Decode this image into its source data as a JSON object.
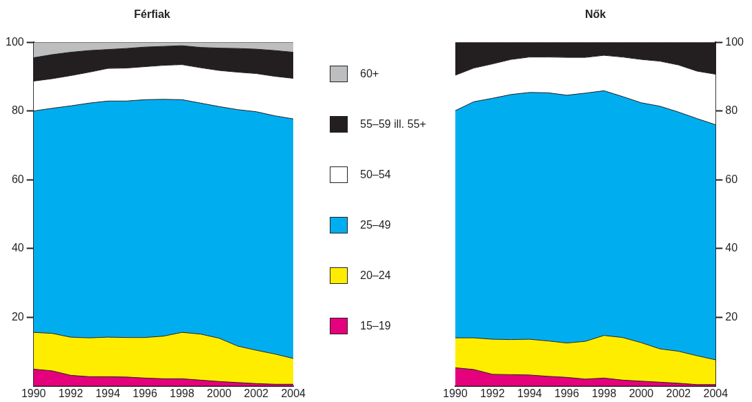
{
  "chart_data": [
    {
      "type": "area",
      "title": "Férfiak",
      "stacked": true,
      "legend": "right",
      "grid": false,
      "x": [
        1990,
        1991,
        1992,
        1993,
        1994,
        1995,
        1996,
        1997,
        1998,
        1999,
        2000,
        2001,
        2002,
        2003,
        2004
      ],
      "xlim": [
        1990,
        2004
      ],
      "xticks": [
        1990,
        1992,
        1994,
        1996,
        1998,
        2000,
        2002,
        2004
      ],
      "ylim": [
        0,
        100
      ],
      "yticks": [
        20,
        40,
        60,
        80,
        100
      ],
      "series": [
        {
          "name": "15–19",
          "color": "#e5007d",
          "values": [
            4.9,
            4.4,
            3.1,
            2.7,
            2.7,
            2.6,
            2.3,
            2.1,
            2.1,
            1.7,
            1.3,
            1.0,
            0.7,
            0.5,
            0.5
          ]
        },
        {
          "name": "20–24",
          "color": "#ffed00",
          "values": [
            10.7,
            10.9,
            11.1,
            11.3,
            11.5,
            11.5,
            11.8,
            12.4,
            13.5,
            13.4,
            12.6,
            10.6,
            9.7,
            8.8,
            7.5
          ]
        },
        {
          "name": "25–49",
          "color": "#00aeef",
          "values": [
            64.4,
            65.5,
            67.3,
            68.3,
            68.7,
            68.8,
            69.2,
            68.9,
            67.7,
            67.2,
            67.4,
            68.8,
            69.4,
            69.3,
            69.7
          ]
        },
        {
          "name": "50–54",
          "color": "#ffffff",
          "values": [
            8.7,
            8.6,
            8.8,
            9.0,
            9.5,
            9.6,
            9.6,
            9.9,
            10.2,
            10.3,
            10.5,
            10.9,
            11.1,
            11.5,
            11.8
          ]
        },
        {
          "name": "55–59 ill. 55+",
          "color": "#231f20",
          "values": [
            6.8,
            7.0,
            6.8,
            6.3,
            5.5,
            5.7,
            5.7,
            5.5,
            5.5,
            5.9,
            6.5,
            6.9,
            7.1,
            7.5,
            7.6
          ]
        },
        {
          "name": "60+",
          "color": "#bcbec0",
          "values": [
            4.5,
            3.6,
            2.9,
            2.4,
            2.1,
            1.8,
            1.4,
            1.2,
            1.0,
            1.5,
            1.7,
            1.8,
            2.0,
            2.4,
            2.9
          ]
        }
      ]
    },
    {
      "type": "area",
      "title": "Nők",
      "stacked": true,
      "grid": false,
      "x": [
        1990,
        1991,
        1992,
        1993,
        1994,
        1995,
        1996,
        1997,
        1998,
        1999,
        2000,
        2001,
        2002,
        2003,
        2004
      ],
      "xlim": [
        1990,
        2004
      ],
      "xticks": [
        1990,
        1992,
        1994,
        1996,
        1998,
        2000,
        2002,
        2004
      ],
      "y2lim": [
        0,
        100
      ],
      "y2ticks": [
        20,
        40,
        60,
        80,
        100
      ],
      "series": [
        {
          "color": "#e5007d",
          "axis": "y2",
          "values": [
            5.3,
            4.8,
            3.4,
            3.3,
            3.2,
            2.8,
            2.5,
            2.0,
            2.3,
            1.7,
            1.4,
            1.1,
            0.8,
            0.4,
            0.4
          ]
        },
        {
          "color": "#ffed00",
          "axis": "y2",
          "values": [
            8.7,
            9.2,
            10.2,
            10.2,
            10.4,
            10.3,
            10.0,
            11.0,
            12.4,
            12.4,
            11.2,
            9.7,
            9.3,
            8.4,
            7.2
          ]
        },
        {
          "color": "#00aeef",
          "axis": "y2",
          "values": [
            66.1,
            68.7,
            70.1,
            71.3,
            71.8,
            72.2,
            72.1,
            72.2,
            71.2,
            70.1,
            69.8,
            70.6,
            69.6,
            69.0,
            68.4
          ]
        },
        {
          "color": "#ffffff",
          "axis": "y2",
          "values": [
            10.3,
            9.8,
            10.0,
            10.2,
            10.3,
            10.4,
            11.0,
            10.4,
            10.3,
            11.5,
            12.6,
            13.1,
            13.7,
            13.8,
            14.7
          ]
        },
        {
          "color": "#231f20",
          "axis": "y2",
          "values": [
            9.6,
            7.5,
            6.3,
            5.0,
            4.3,
            4.3,
            4.4,
            4.4,
            3.8,
            4.3,
            5.0,
            5.5,
            6.6,
            8.4,
            9.3
          ]
        }
      ]
    }
  ]
}
